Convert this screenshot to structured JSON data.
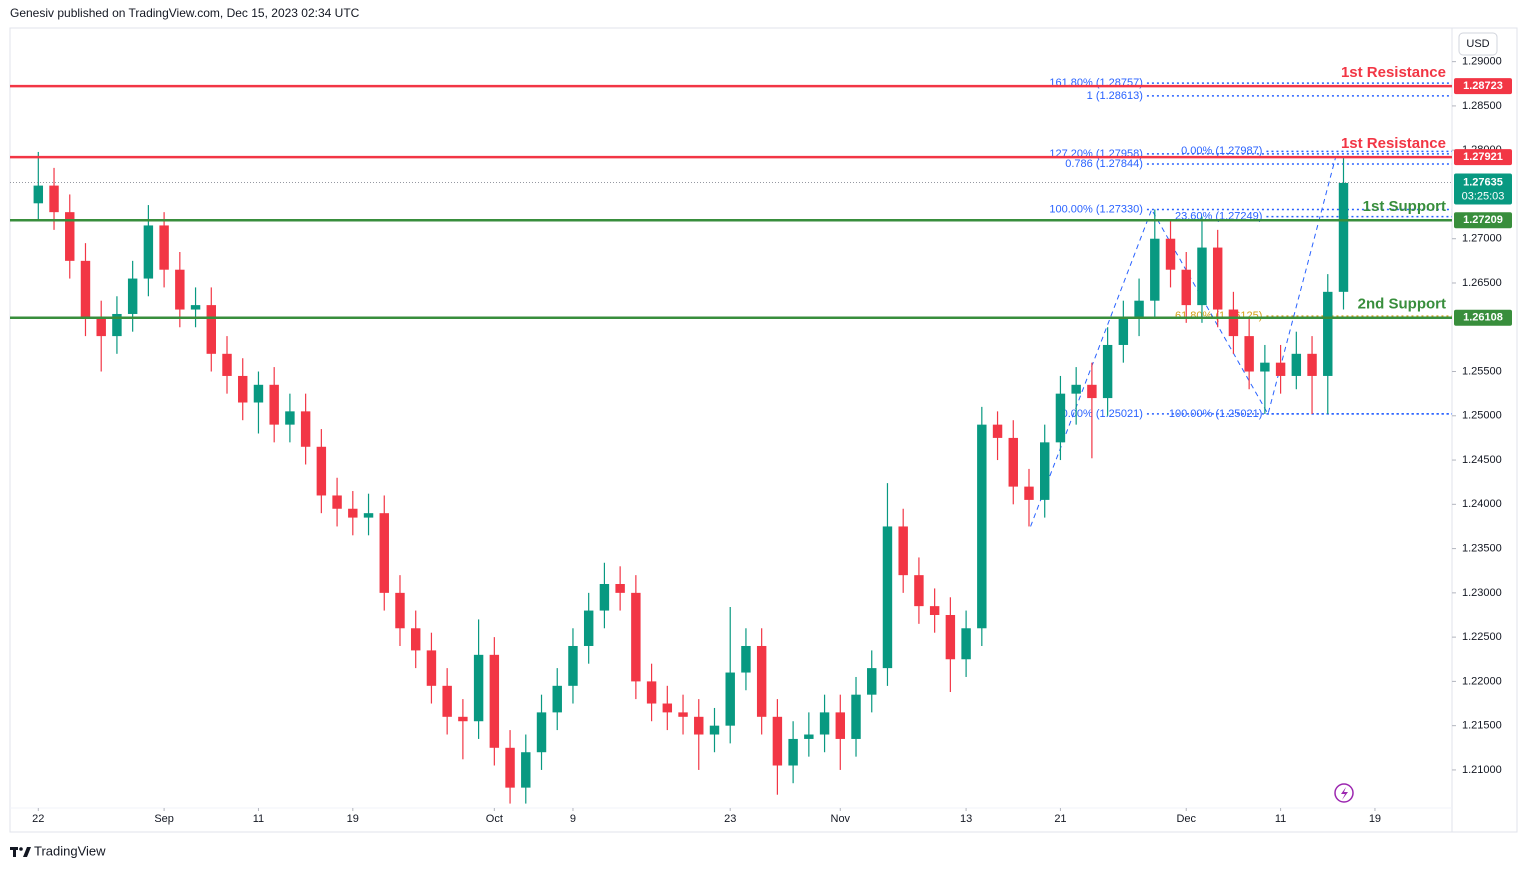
{
  "header": {
    "text": "Genesiv published on TradingView.com, Dec 15, 2023 02:34 UTC"
  },
  "footer": {
    "brand": "TradingView"
  },
  "chart_data": {
    "type": "candlestick",
    "currency": "USD",
    "up_color": "#089981",
    "down_color": "#f23645",
    "x": [
      0,
      1,
      2,
      3,
      4,
      5,
      6,
      7,
      8,
      9,
      10,
      11,
      12,
      13,
      14,
      15,
      16,
      17,
      18,
      19,
      20,
      21,
      22,
      23,
      24,
      25,
      26,
      27,
      28,
      29,
      30,
      31,
      32,
      33,
      34,
      35,
      36,
      37,
      38,
      39,
      40,
      41,
      42,
      43,
      44,
      45,
      46,
      47,
      48,
      49,
      50,
      51,
      52,
      53,
      54,
      55,
      56,
      57,
      58,
      59,
      60,
      61,
      62,
      63,
      64,
      65,
      66,
      67,
      68,
      69,
      70,
      71,
      72,
      73,
      74,
      75,
      76,
      77,
      78,
      79,
      80,
      81,
      82,
      83
    ],
    "open": [
      1.274,
      1.276,
      1.273,
      1.2675,
      1.261,
      1.259,
      1.2615,
      1.2655,
      1.2715,
      1.2665,
      1.262,
      1.2625,
      1.257,
      1.2545,
      1.2515,
      1.2535,
      1.249,
      1.2505,
      1.2465,
      1.241,
      1.2395,
      1.2385,
      1.239,
      1.23,
      1.226,
      1.2235,
      1.2195,
      1.216,
      1.2155,
      1.223,
      1.2125,
      1.208,
      1.212,
      1.2165,
      1.2195,
      1.224,
      1.228,
      1.231,
      1.23,
      1.22,
      1.2175,
      1.2165,
      1.216,
      1.214,
      1.215,
      1.221,
      1.224,
      1.216,
      1.2105,
      1.2135,
      1.214,
      1.2165,
      1.2135,
      1.2185,
      1.2215,
      1.2375,
      1.232,
      1.2285,
      1.2275,
      1.2225,
      1.226,
      1.249,
      1.2475,
      1.242,
      1.2405,
      1.247,
      1.2525,
      1.2535,
      1.252,
      1.258,
      1.261,
      1.263,
      1.27,
      1.2665,
      1.2625,
      1.269,
      1.262,
      1.259,
      1.255,
      1.256,
      1.2545,
      1.257,
      1.2545,
      1.264
    ],
    "high": [
      1.2798,
      1.278,
      1.275,
      1.2695,
      1.263,
      1.2635,
      1.2675,
      1.2738,
      1.273,
      1.2685,
      1.2645,
      1.2645,
      1.259,
      1.2565,
      1.255,
      1.2555,
      1.2525,
      1.2525,
      1.2485,
      1.243,
      1.2415,
      1.2412,
      1.241,
      1.232,
      1.228,
      1.2255,
      1.2215,
      1.218,
      1.227,
      1.225,
      1.2145,
      1.214,
      1.2185,
      1.2215,
      1.226,
      1.23,
      1.2334,
      1.233,
      1.232,
      1.222,
      1.2195,
      1.2185,
      1.218,
      1.217,
      1.2284,
      1.226,
      1.226,
      1.218,
      1.2155,
      1.2165,
      1.2185,
      1.2185,
      1.2205,
      1.2235,
      1.2424,
      1.2395,
      1.234,
      1.2305,
      1.2295,
      1.228,
      1.251,
      1.2505,
      1.2495,
      1.244,
      1.249,
      1.2545,
      1.2555,
      1.256,
      1.26,
      1.263,
      1.2655,
      1.2733,
      1.272,
      1.2685,
      1.2725,
      1.271,
      1.264,
      1.261,
      1.258,
      1.258,
      1.2595,
      1.259,
      1.266,
      1.2793
    ],
    "low": [
      1.272,
      1.271,
      1.2655,
      1.259,
      1.255,
      1.257,
      1.2595,
      1.2635,
      1.2645,
      1.26,
      1.26,
      1.255,
      1.2525,
      1.2495,
      1.248,
      1.247,
      1.247,
      1.2445,
      1.239,
      1.2375,
      1.2365,
      1.2365,
      1.228,
      1.224,
      1.2215,
      1.2175,
      1.214,
      1.2112,
      1.2135,
      1.2105,
      1.2062,
      1.2062,
      1.21,
      1.2145,
      1.2175,
      1.222,
      1.226,
      1.228,
      1.218,
      1.2155,
      1.2145,
      1.214,
      1.21,
      1.212,
      1.213,
      1.219,
      1.214,
      1.2072,
      1.2085,
      1.2115,
      1.212,
      1.21,
      1.2115,
      1.2165,
      1.2195,
      1.23,
      1.2265,
      1.2255,
      1.2188,
      1.2205,
      1.224,
      1.245,
      1.24,
      1.2375,
      1.2385,
      1.245,
      1.249,
      1.2452,
      1.25,
      1.256,
      1.259,
      1.261,
      1.2645,
      1.2605,
      1.2605,
      1.26,
      1.257,
      1.253,
      1.2502,
      1.2525,
      1.253,
      1.2502,
      1.2502,
      1.262
    ],
    "close": [
      1.276,
      1.273,
      1.2675,
      1.261,
      1.259,
      1.2615,
      1.2655,
      1.2715,
      1.2665,
      1.262,
      1.2625,
      1.257,
      1.2545,
      1.2515,
      1.2535,
      1.249,
      1.2505,
      1.2465,
      1.241,
      1.2395,
      1.2385,
      1.239,
      1.23,
      1.226,
      1.2235,
      1.2195,
      1.216,
      1.2155,
      1.223,
      1.2125,
      1.208,
      1.212,
      1.2165,
      1.2195,
      1.224,
      1.228,
      1.231,
      1.23,
      1.22,
      1.2175,
      1.2165,
      1.216,
      1.214,
      1.215,
      1.221,
      1.224,
      1.216,
      1.2105,
      1.2135,
      1.214,
      1.2165,
      1.2135,
      1.2185,
      1.2215,
      1.2375,
      1.232,
      1.2285,
      1.2275,
      1.2225,
      1.226,
      1.249,
      1.2475,
      1.242,
      1.2405,
      1.247,
      1.2525,
      1.2535,
      1.252,
      1.258,
      1.261,
      1.263,
      1.27,
      1.2665,
      1.2625,
      1.269,
      1.262,
      1.259,
      1.255,
      1.256,
      1.2545,
      1.257,
      1.2545,
      1.264,
      1.2763
    ],
    "xlim": [
      -1.8,
      89.9
    ],
    "ylim": [
      1.2057,
      1.2938
    ],
    "xticks": [
      {
        "value": 0,
        "label": "22"
      },
      {
        "value": 8,
        "label": "Sep"
      },
      {
        "value": 14,
        "label": "11"
      },
      {
        "value": 20,
        "label": "19"
      },
      {
        "value": 29,
        "label": "Oct"
      },
      {
        "value": 34,
        "label": "9"
      },
      {
        "value": 44,
        "label": "23"
      },
      {
        "value": 51,
        "label": "Nov"
      },
      {
        "value": 59,
        "label": "13"
      },
      {
        "value": 65,
        "label": "21"
      },
      {
        "value": 73,
        "label": "Dec"
      },
      {
        "value": 79,
        "label": "11"
      },
      {
        "value": 85,
        "label": "19"
      }
    ],
    "yticks": [
      {
        "value": 1.29,
        "label": "1.29000"
      },
      {
        "value": 1.285,
        "label": "1.28500"
      },
      {
        "value": 1.28,
        "label": "1.28000"
      },
      {
        "value": 1.27,
        "label": "1.27000"
      },
      {
        "value": 1.265,
        "label": "1.26500"
      },
      {
        "value": 1.255,
        "label": "1.25500"
      },
      {
        "value": 1.25,
        "label": "1.25000"
      },
      {
        "value": 1.245,
        "label": "1.24500"
      },
      {
        "value": 1.24,
        "label": "1.24000"
      },
      {
        "value": 1.235,
        "label": "1.23500"
      },
      {
        "value": 1.23,
        "label": "1.23000"
      },
      {
        "value": 1.225,
        "label": "1.22500"
      },
      {
        "value": 1.22,
        "label": "1.22000"
      },
      {
        "value": 1.215,
        "label": "1.21500"
      },
      {
        "value": 1.21,
        "label": "1.21000"
      }
    ],
    "grid": false,
    "levels": [
      {
        "name": "1st Resistance",
        "value": 1.28723,
        "color": "#f23645"
      },
      {
        "name": "1st Resistance",
        "value": 1.27921,
        "color": "#f23645"
      },
      {
        "name": "1st Support",
        "value": 1.27209,
        "color": "#388e3c"
      },
      {
        "name": "2nd Support",
        "value": 1.26108,
        "color": "#388e3c"
      }
    ],
    "last_price": {
      "value": 1.27635,
      "countdown": "03:25:03",
      "color": "#089981"
    },
    "fib_lines": [
      {
        "value": 1.28757,
        "label": "161.80% (1.28757)",
        "from": 70.5,
        "color": "#2962ff"
      },
      {
        "value": 1.28613,
        "label": "1 (1.28613)",
        "from": 70.5,
        "color": "#2962ff"
      },
      {
        "value": 1.27958,
        "label": "127.20% (1.27958)",
        "from": 70.5,
        "color": "#2962ff"
      },
      {
        "value": 1.27844,
        "label": "0.786 (1.27844)",
        "from": 70.5,
        "color": "#2962ff"
      },
      {
        "value": 1.2733,
        "label": "100.00% (1.27330)",
        "from": 70.5,
        "color": "#2962ff"
      },
      {
        "value": 1.25021,
        "label": "0.00% (1.25021)",
        "from": 70.5,
        "color": "#2962ff"
      },
      {
        "value": 1.27987,
        "label": "0.00% (1.27987)",
        "from": 78.1,
        "color": "#2962ff"
      },
      {
        "value": 1.27249,
        "label": "23.60% (1.27249)",
        "from": 78.1,
        "color": "#2962ff"
      },
      {
        "value": 1.26125,
        "label": "61.80% (1.26125)",
        "from": 78.1,
        "color": "#d4a017"
      },
      {
        "value": 1.25021,
        "label": "100.00% (1.25021)",
        "from": 78.1,
        "color": "#2962ff"
      }
    ],
    "pattern": {
      "x": [
        63.1,
        70.8,
        78.2,
        82.5
      ],
      "y": [
        1.2375,
        1.2733,
        1.2502,
        1.2792
      ],
      "color": "#2962ff"
    }
  }
}
